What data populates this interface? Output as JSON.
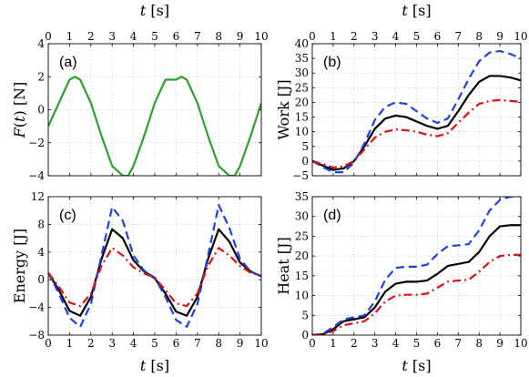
{
  "chart_data": [
    {
      "id": "a",
      "type": "line",
      "panel_label": "(a)",
      "xlabel_top": "t [s]",
      "ylabel": "F(t) [N]",
      "xlim": [
        0,
        10
      ],
      "ylim": [
        -4,
        4
      ],
      "xticks": [
        "0",
        "1",
        "2",
        "3",
        "4",
        "5",
        "6",
        "7",
        "8",
        "9",
        "10"
      ],
      "yticks": [
        "-4",
        "-2",
        "0",
        "2",
        "4"
      ],
      "grid": true,
      "series": [
        {
          "color": "#2ca02c",
          "style": "solid",
          "x": [
            0,
            0.5,
            1,
            1.25,
            1.5,
            2,
            2.5,
            3,
            3.5,
            3.75,
            4,
            4.5,
            5,
            5.5,
            6,
            6.25,
            6.5,
            7,
            7.5,
            8,
            8.5,
            8.75,
            9,
            9.5,
            10
          ],
          "y": [
            -1,
            0.41,
            1.82,
            2,
            1.82,
            0.41,
            -1.59,
            -3.41,
            -4,
            -4,
            -3.41,
            -1.59,
            0.41,
            1.82,
            1.82,
            2,
            1.82,
            0.41,
            -1.59,
            -3.41,
            -4,
            -4,
            -3.41,
            -1.59,
            0.41
          ]
        }
      ]
    },
    {
      "id": "b",
      "type": "line",
      "panel_label": "(b)",
      "xlabel_top": "t [s]",
      "ylabel": "Work [J]",
      "xlim": [
        0,
        10
      ],
      "ylim": [
        -5,
        40
      ],
      "xticks": [
        "0",
        "1",
        "2",
        "3",
        "4",
        "5",
        "6",
        "7",
        "8",
        "9",
        "10"
      ],
      "yticks": [
        "-5",
        "0",
        "5",
        "10",
        "15",
        "20",
        "25",
        "30",
        "35",
        "40"
      ],
      "grid": true,
      "series": [
        {
          "color": "#000000",
          "style": "solid",
          "x": [
            0,
            0.5,
            1,
            1.5,
            2,
            2.5,
            3,
            3.5,
            4,
            4.5,
            5,
            5.5,
            6,
            6.5,
            7,
            7.5,
            8,
            8.5,
            9,
            9.5,
            10
          ],
          "y": [
            0,
            -1.5,
            -3,
            -2.5,
            0,
            5,
            11,
            14.5,
            15.5,
            15,
            13.5,
            12,
            11,
            12,
            17,
            22.5,
            27,
            29,
            29,
            28.5,
            27.5
          ]
        },
        {
          "color": "#1f3fe0",
          "style": "dashed",
          "x": [
            0,
            0.5,
            1,
            1.5,
            2,
            2.5,
            3,
            3.5,
            4,
            4.5,
            5,
            5.5,
            6,
            6.5,
            7,
            7.5,
            8,
            8.5,
            9,
            9.5,
            10
          ],
          "y": [
            0,
            -2,
            -3.8,
            -3.8,
            -0.5,
            6,
            14,
            18.5,
            20,
            19.5,
            17,
            14.5,
            13,
            14.5,
            21,
            28,
            34,
            37,
            37.5,
            36.5,
            35
          ]
        },
        {
          "color": "#e01010",
          "style": "dashdot",
          "x": [
            0,
            0.5,
            1,
            1.5,
            2,
            2.5,
            3,
            3.5,
            4,
            4.5,
            5,
            5.5,
            6,
            6.5,
            7,
            7.5,
            8,
            8.5,
            9,
            9.5,
            10
          ],
          "y": [
            0,
            -1,
            -2.2,
            -1.8,
            0,
            4,
            8,
            10,
            10.8,
            10.5,
            10,
            9,
            8.5,
            9.5,
            13,
            16.5,
            19.5,
            20.5,
            20.8,
            20.5,
            20.2
          ]
        }
      ]
    },
    {
      "id": "c",
      "type": "line",
      "panel_label": "(c)",
      "xlabel": "t [s]",
      "ylabel": "Energy [J]",
      "xlim": [
        0,
        10
      ],
      "ylim": [
        -8,
        12
      ],
      "xticks": [
        "0",
        "1",
        "2",
        "3",
        "4",
        "5",
        "6",
        "7",
        "8",
        "9",
        "10"
      ],
      "yticks": [
        "-8",
        "-4",
        "0",
        "4",
        "8",
        "12"
      ],
      "grid": true,
      "series": [
        {
          "color": "#000000",
          "style": "solid",
          "x": [
            0,
            0.5,
            1,
            1.5,
            2,
            2.5,
            3,
            3.5,
            4,
            4.5,
            5,
            5.5,
            6,
            6.5,
            7,
            7.5,
            8,
            8.5,
            9,
            9.5,
            10
          ],
          "y": [
            1,
            -1.5,
            -4.5,
            -5.2,
            -2.5,
            3,
            7.3,
            6,
            2.8,
            1.2,
            0.2,
            -2,
            -4.6,
            -5.2,
            -2.5,
            3,
            7.3,
            5.5,
            2.5,
            1.2,
            0.5
          ]
        },
        {
          "color": "#1f3fe0",
          "style": "dashed",
          "x": [
            0,
            0.5,
            1,
            1.5,
            2,
            2.5,
            3,
            3.5,
            4,
            4.5,
            5,
            5.5,
            6,
            6.5,
            7,
            7.5,
            8,
            8.5,
            9,
            9.5,
            10
          ],
          "y": [
            1,
            -2,
            -5.5,
            -6.8,
            -3.5,
            3.5,
            10.5,
            8.5,
            3.5,
            1.3,
            0.3,
            -2.5,
            -5.8,
            -6.8,
            -3.5,
            3.5,
            10.8,
            7.5,
            3,
            1.2,
            0.5
          ]
        },
        {
          "color": "#e01010",
          "style": "dashdot",
          "x": [
            0,
            0.5,
            1,
            1.5,
            2,
            2.5,
            3,
            3.5,
            4,
            4.5,
            5,
            5.5,
            6,
            6.5,
            7,
            7.5,
            8,
            8.5,
            9,
            9.5,
            10
          ],
          "y": [
            1,
            -1,
            -3.3,
            -3.8,
            -2,
            2,
            4.6,
            3.5,
            1.8,
            0.9,
            0.3,
            -1.5,
            -3.4,
            -3.8,
            -2,
            2,
            4.6,
            3.5,
            2,
            1,
            0.6
          ]
        }
      ]
    },
    {
      "id": "d",
      "type": "line",
      "panel_label": "(d)",
      "xlabel": "t [s]",
      "ylabel": "Heat [J]",
      "xlim": [
        0,
        10
      ],
      "ylim": [
        0,
        35
      ],
      "xticks": [
        "0",
        "1",
        "2",
        "3",
        "4",
        "5",
        "6",
        "7",
        "8",
        "9",
        "10"
      ],
      "yticks": [
        "0",
        "5",
        "10",
        "15",
        "20",
        "25",
        "30",
        "35"
      ],
      "grid": true,
      "series": [
        {
          "color": "#000000",
          "style": "solid",
          "x": [
            0,
            0.5,
            1,
            1.5,
            2,
            2.5,
            3,
            3.5,
            4,
            4.5,
            5,
            5.5,
            6,
            6.5,
            7,
            7.5,
            8,
            8.5,
            9,
            9.5,
            10
          ],
          "y": [
            0,
            0.2,
            1.5,
            3.5,
            4,
            4.5,
            7,
            11,
            13,
            13.5,
            13.5,
            13.8,
            15.5,
            17.5,
            18,
            18.5,
            21,
            25,
            27.5,
            27.8,
            27.8
          ]
        },
        {
          "color": "#1f3fe0",
          "style": "dashed",
          "x": [
            0,
            0.5,
            1,
            1.5,
            2,
            2.5,
            3,
            3.5,
            4,
            4.5,
            5,
            5.5,
            6,
            6.5,
            7,
            7.5,
            8,
            8.5,
            9,
            9.5,
            10
          ],
          "y": [
            0,
            0.3,
            2,
            4,
            4.5,
            5,
            8.5,
            14,
            17,
            17.3,
            17.3,
            17.8,
            20.5,
            22.5,
            22.7,
            23,
            26.5,
            31.5,
            34.2,
            35,
            35.2
          ]
        },
        {
          "color": "#e01010",
          "style": "dashdot",
          "x": [
            0,
            0.5,
            1,
            1.5,
            2,
            2.5,
            3,
            3.5,
            4,
            4.5,
            5,
            5.5,
            6,
            6.5,
            7,
            7.5,
            8,
            8.5,
            9,
            9.5,
            10
          ],
          "y": [
            0,
            0.1,
            1,
            2.5,
            3,
            3.5,
            5.5,
            8.5,
            10,
            10.2,
            10.2,
            10.5,
            12,
            13.5,
            13.8,
            14,
            16,
            18.5,
            20,
            20.3,
            20.3
          ]
        }
      ]
    }
  ]
}
